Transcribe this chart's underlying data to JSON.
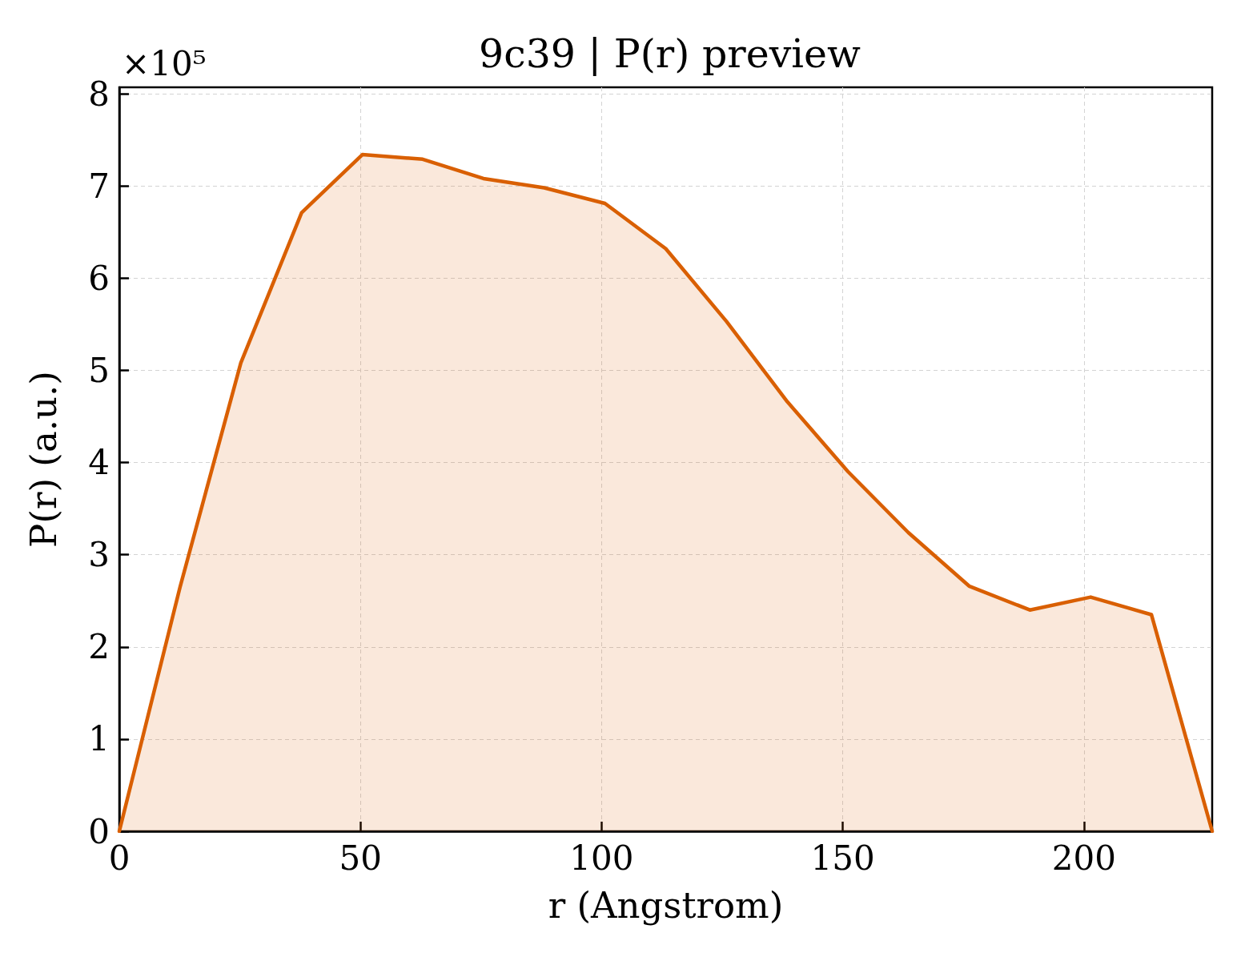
{
  "chart_data": {
    "type": "area",
    "title": "9c39 | P(r) preview",
    "xlabel": "r (Angstrom)",
    "ylabel": "P(r) (a.u.)",
    "annotations": [
      "×10⁵"
    ],
    "x": [
      0,
      12.6,
      25.2,
      37.8,
      50.4,
      62.9,
      75.5,
      88.1,
      100.7,
      113.3,
      125.9,
      138.5,
      151.1,
      163.6,
      176.2,
      188.8,
      201.4,
      214.0,
      226.6
    ],
    "values": [
      0,
      2.65,
      5.08,
      6.71,
      7.34,
      7.29,
      7.08,
      6.98,
      6.81,
      6.32,
      5.53,
      4.66,
      3.9,
      3.24,
      2.66,
      2.4,
      2.54,
      2.35,
      0
    ],
    "color": "#d95f02",
    "xlim": [
      0,
      226.6
    ],
    "xticks": [
      0,
      50,
      100,
      150,
      200
    ],
    "ylim": [
      0,
      8.07
    ],
    "yticks": [
      0,
      1,
      2,
      3,
      4,
      5,
      6,
      7,
      8
    ],
    "grid": true,
    "marker": "none"
  }
}
